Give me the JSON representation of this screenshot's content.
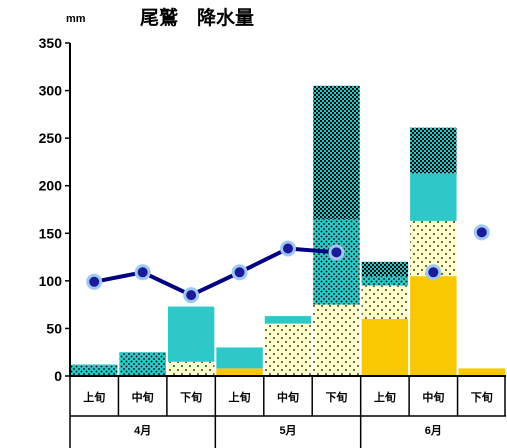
{
  "chart_data": {
    "type": "bar",
    "title": "尾鷲　降水量",
    "unit_label": "mm",
    "ylim": [
      0,
      350
    ],
    "yticks": [
      0,
      50,
      100,
      150,
      200,
      250,
      300,
      350
    ],
    "categories": [
      "上旬",
      "中旬",
      "下旬",
      "上旬",
      "中旬",
      "下旬",
      "上旬",
      "中旬",
      "下旬"
    ],
    "months": [
      {
        "label": "4月",
        "span": [
          0,
          2
        ]
      },
      {
        "label": "5月",
        "span": [
          3,
          5
        ]
      },
      {
        "label": "6月",
        "span": [
          6,
          8
        ]
      }
    ],
    "stack_layers": [
      {
        "fill": "#f9c800",
        "pattern": "none"
      },
      {
        "fill": "#ffffcc",
        "pattern": "sparse-dots"
      },
      {
        "fill": "#2ec8c8",
        "pattern": "dots"
      },
      {
        "fill": "#2ec8c8",
        "pattern": "none"
      },
      {
        "fill": "#2ec8c8",
        "pattern": "dense-dots"
      }
    ],
    "bars": [
      {
        "layers": [
          0,
          0,
          12,
          0,
          0
        ]
      },
      {
        "layers": [
          0,
          0,
          25,
          0,
          0
        ]
      },
      {
        "layers": [
          0,
          15,
          0,
          58,
          0
        ]
      },
      {
        "layers": [
          8,
          0,
          0,
          22,
          0
        ]
      },
      {
        "layers": [
          0,
          55,
          0,
          8,
          0
        ]
      },
      {
        "layers": [
          0,
          75,
          90,
          0,
          140
        ]
      },
      {
        "layers": [
          60,
          35,
          10,
          0,
          15
        ]
      },
      {
        "layers": [
          105,
          58,
          0,
          50,
          48
        ]
      },
      {
        "layers": [
          8,
          0,
          0,
          0,
          0
        ]
      }
    ],
    "line": {
      "color": "#000080",
      "marker_fill": "#1a1a9a",
      "marker_edge": "#9fc8f0",
      "values": [
        99,
        109,
        85,
        109,
        134,
        130,
        null,
        109,
        151
      ],
      "segments": [
        [
          0,
          5
        ],
        [
          6,
          7
        ]
      ]
    }
  }
}
